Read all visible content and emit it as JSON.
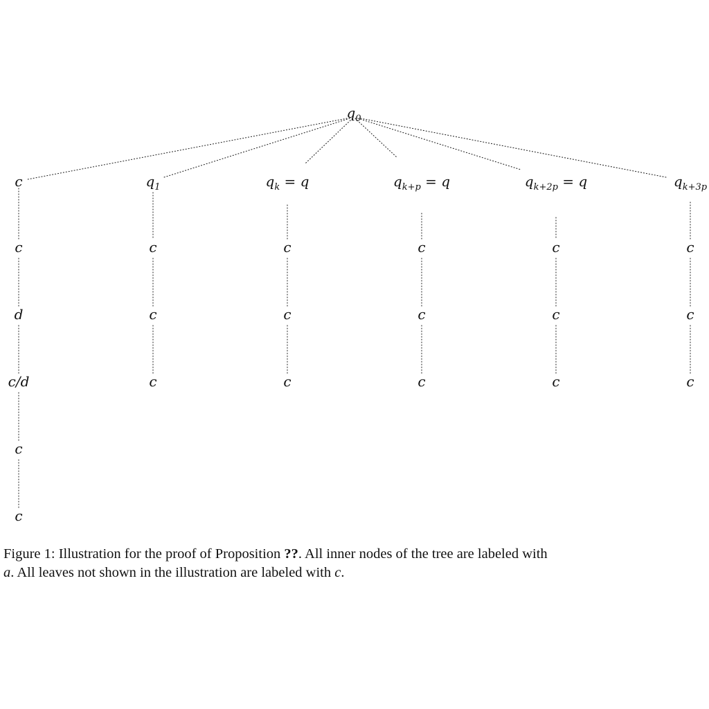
{
  "tree": {
    "root": {
      "base": "q",
      "sub": "0",
      "suffix": ""
    },
    "columns": [
      {
        "head": {
          "base": "c",
          "sub": "",
          "suffix": ""
        },
        "chain": [
          "c",
          "d",
          "c/d",
          "c",
          "c"
        ]
      },
      {
        "head": {
          "base": "q",
          "sub": "1",
          "suffix": ""
        },
        "chain": [
          "c",
          "c",
          "c"
        ]
      },
      {
        "head": {
          "base": "q",
          "sub": "k",
          "suffix": " = q"
        },
        "chain": [
          "c",
          "c",
          "c"
        ]
      },
      {
        "head": {
          "base": "q",
          "sub": "k+p",
          "suffix": " = q"
        },
        "chain": [
          "c",
          "c",
          "c"
        ]
      },
      {
        "head": {
          "base": "q",
          "sub": "k+2p",
          "suffix": " = q"
        },
        "chain": [
          "c",
          "c",
          "c"
        ]
      },
      {
        "head": {
          "base": "q",
          "sub": "k+3p",
          "suffix": ""
        },
        "chain": [
          "c",
          "c",
          "c"
        ]
      }
    ]
  },
  "caption": {
    "figure_label": "Figure 1:",
    "part1": "Illustration for the proof of Proposition",
    "ref": "??",
    "part2": ". All inner nodes of the tree are labeled with",
    "var_a": "a",
    "part3": ". All leaves not shown in the illustration are labeled with",
    "var_c": "c",
    "part4": "."
  }
}
